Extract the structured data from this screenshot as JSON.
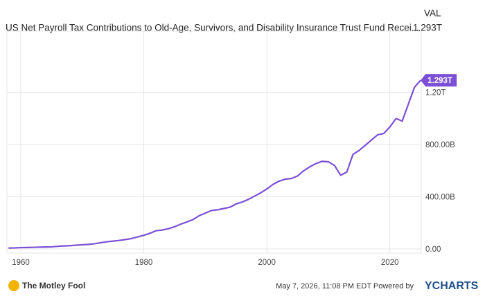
{
  "chart_data": {
    "type": "line",
    "title": "US Net Payroll Tax Contributions to Old-Age, Survivors, and Disability Insurance Trust Fund Recei...",
    "value_header": "VAL",
    "x": [
      1958,
      1959,
      1960,
      1961,
      1962,
      1963,
      1964,
      1965,
      1966,
      1967,
      1968,
      1969,
      1970,
      1971,
      1972,
      1973,
      1974,
      1975,
      1976,
      1977,
      1978,
      1979,
      1980,
      1981,
      1982,
      1983,
      1984,
      1985,
      1986,
      1987,
      1988,
      1989,
      1990,
      1991,
      1992,
      1993,
      1994,
      1995,
      1996,
      1997,
      1998,
      1999,
      2000,
      2001,
      2002,
      2003,
      2004,
      2005,
      2006,
      2007,
      2008,
      2009,
      2010,
      2011,
      2012,
      2013,
      2014,
      2015,
      2016,
      2017,
      2018,
      2019,
      2020,
      2021,
      2022,
      2023,
      2024,
      2025
    ],
    "series": [
      {
        "color": "#7b4fd6",
        "values": [
          7,
          8,
          10,
          11,
          12,
          14,
          15,
          16,
          20,
          23,
          25,
          29,
          32,
          35,
          40,
          48,
          55,
          60,
          65,
          72,
          80,
          92,
          105,
          120,
          140,
          145,
          155,
          170,
          190,
          207,
          225,
          255,
          275,
          295,
          300,
          310,
          320,
          345,
          360,
          380,
          405,
          430,
          460,
          495,
          520,
          535,
          540,
          560,
          600,
          630,
          655,
          672,
          668,
          640,
          565,
          590,
          725,
          755,
          795,
          835,
          875,
          885,
          935,
          1000,
          980,
          1110,
          1240,
          1293
        ],
        "value_labels": [
          null,
          null,
          null,
          null,
          null,
          null,
          null,
          null,
          null,
          null,
          null,
          null,
          null,
          null,
          null,
          null,
          null,
          null,
          null,
          null,
          null,
          null,
          null,
          null,
          null,
          null,
          null,
          null,
          null,
          null,
          null,
          null,
          null,
          null,
          null,
          null,
          null,
          null,
          null,
          null,
          null,
          null,
          null,
          null,
          null,
          null,
          null,
          null,
          null,
          null,
          null,
          null,
          null,
          null,
          null,
          null,
          null,
          null,
          null,
          null,
          null,
          null,
          null,
          null,
          null,
          null,
          null,
          "1.293T"
        ]
      }
    ],
    "xlim": [
      1957.75,
      2025.1
    ],
    "xticks": [
      1960,
      1980,
      2000,
      2020
    ],
    "ylim": [
      -32,
      1670
    ],
    "yticks": [
      {
        "value": 0,
        "label": "0.00"
      },
      {
        "value": 400,
        "label": "400.00B"
      },
      {
        "value": 800,
        "label": "800.00B"
      },
      {
        "value": 1200,
        "label": "1.20T"
      }
    ],
    "grid": true,
    "footer": {
      "left": "The Motley Fool",
      "timestamp": "May 7, 2026, 11:08 PM EDT Powered by",
      "brand": "YCHARTS"
    }
  }
}
